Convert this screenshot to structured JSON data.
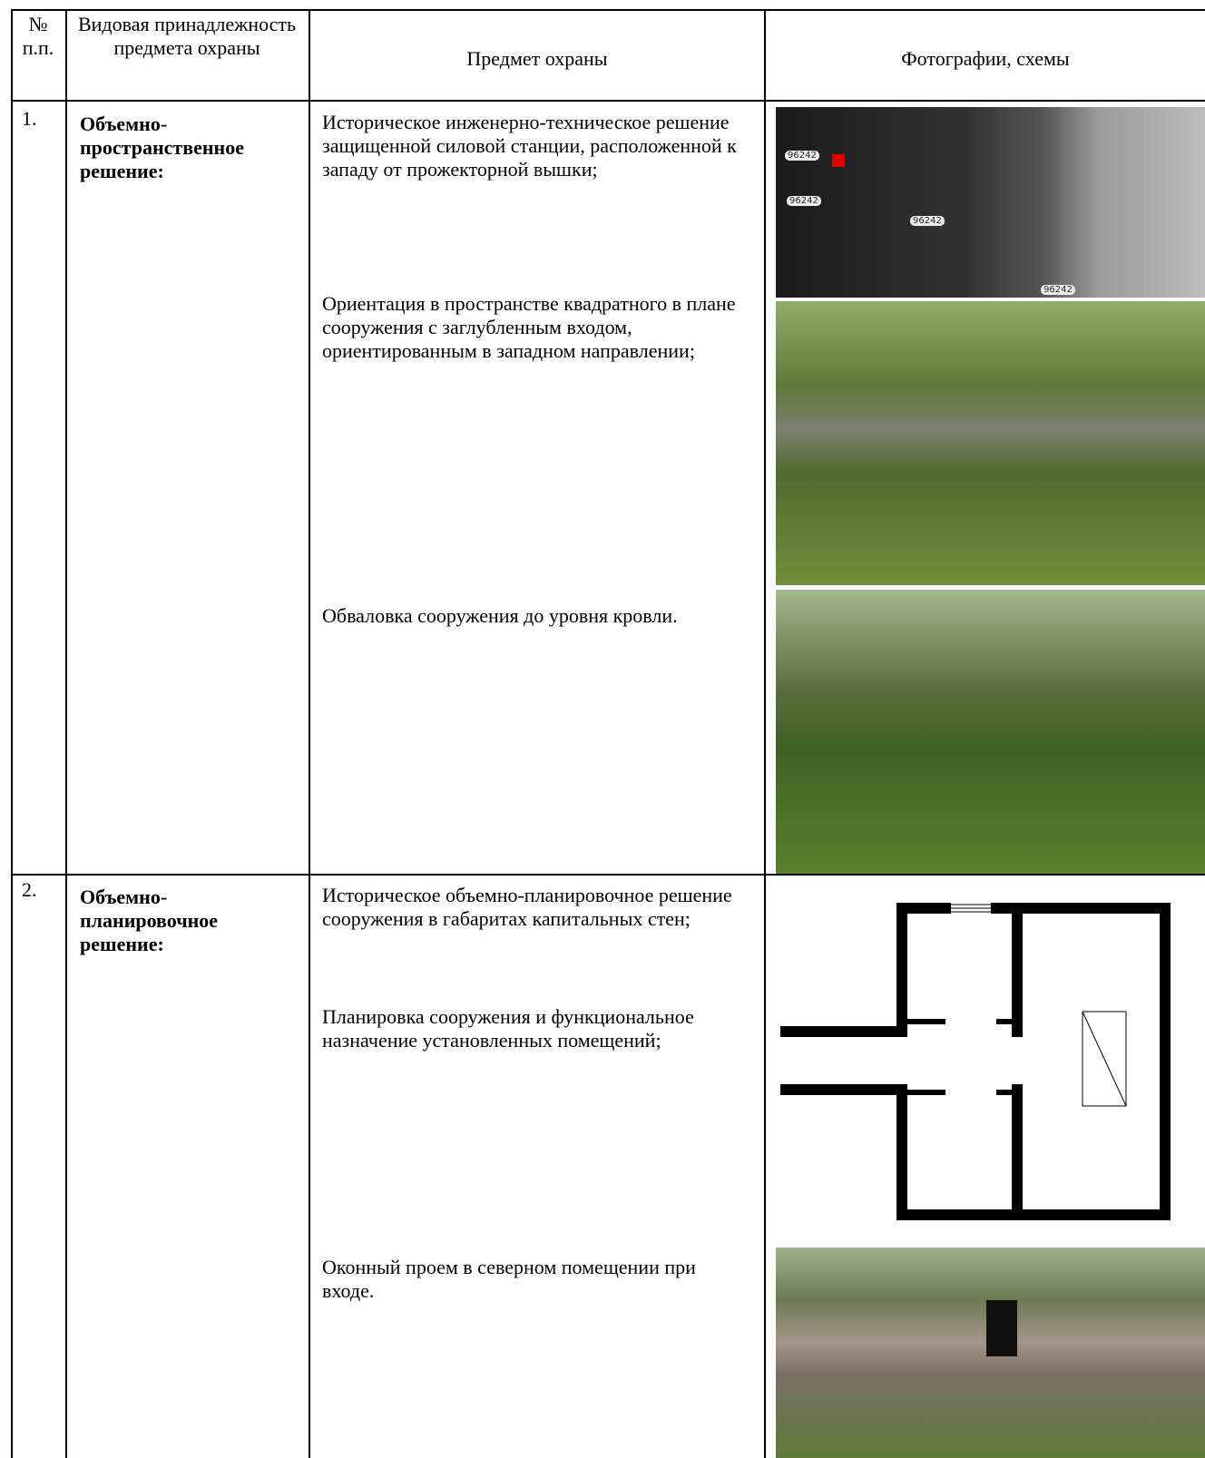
{
  "header": {
    "number": "№ п.п.",
    "kind": "Видовая принадлежность предмета охраны",
    "subject": "Предмет охраны",
    "photos": "Фотографии, схемы"
  },
  "rows": [
    {
      "number": "1.",
      "kind": "Объемно-пространственное решение:",
      "items": [
        "Историческое инженерно-техническое решение защищенной силовой станции, расположенной к западу от прожекторной вышки;",
        "Ориентация в пространстве квадратного в плане сооружения с заглубленным входом, ориентированным в западном направлении;",
        "Обваловка сооружения до уровня кровли."
      ]
    },
    {
      "number": "2.",
      "kind": "Объемно-планировочное решение:",
      "items": [
        "Историческое объемно-планировочное решение сооружения в габаритах капитальных стен;",
        "Планировка сооружения и функциональное назначение установленных помещений;",
        "Оконный проем в северном помещении при входе."
      ]
    }
  ],
  "map_labels": [
    "96242",
    "96242",
    "96242",
    "96242"
  ]
}
